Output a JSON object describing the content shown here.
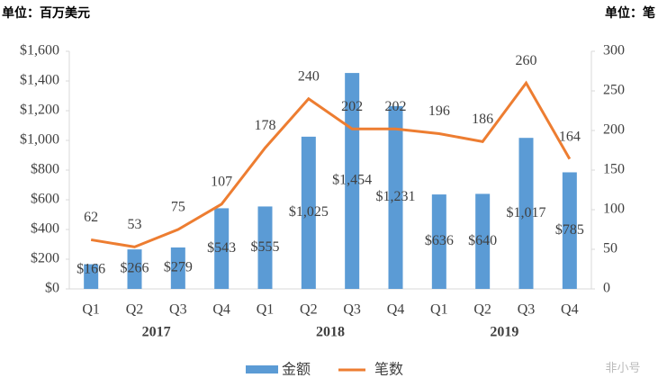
{
  "chart_data": {
    "type": "bar_line",
    "left_unit": "单位：百万美元",
    "right_unit": "单位：笔",
    "categories": [
      "Q1",
      "Q2",
      "Q3",
      "Q4",
      "Q1",
      "Q2",
      "Q3",
      "Q4",
      "Q1",
      "Q2",
      "Q3",
      "Q4"
    ],
    "years": [
      "2017",
      "2018",
      "2019"
    ],
    "series": [
      {
        "name": "金额",
        "color": "#5b9bd5",
        "type": "bar",
        "values": [
          166,
          266,
          279,
          543,
          555,
          1025,
          1454,
          1231,
          636,
          640,
          1017,
          785
        ],
        "value_labels": [
          "$166",
          "$266",
          "$279",
          "$543",
          "$555",
          "$1,025",
          "$1,454",
          "$1,231",
          "$636",
          "$640",
          "$1,017",
          "$785"
        ]
      },
      {
        "name": "笔数",
        "color": "#ed7d31",
        "type": "line",
        "axis": "y2",
        "values": [
          62,
          53,
          75,
          107,
          178,
          240,
          202,
          202,
          196,
          186,
          260,
          164
        ]
      }
    ],
    "ylim": [
      0,
      1600
    ],
    "yticks": [
      {
        "value": 0,
        "label": "$0"
      },
      {
        "value": 200,
        "label": "$200"
      },
      {
        "value": 400,
        "label": "$400"
      },
      {
        "value": 600,
        "label": "$600"
      },
      {
        "value": 800,
        "label": "$800"
      },
      {
        "value": 1000,
        "label": "$1,000"
      },
      {
        "value": 1200,
        "label": "$1,200"
      },
      {
        "value": 1400,
        "label": "$1,400"
      },
      {
        "value": 1600,
        "label": "$1,600"
      }
    ],
    "y2lim": [
      0,
      300
    ],
    "y2ticks": [
      0,
      50,
      100,
      150,
      200,
      250,
      300
    ],
    "watermark": "非小号"
  }
}
